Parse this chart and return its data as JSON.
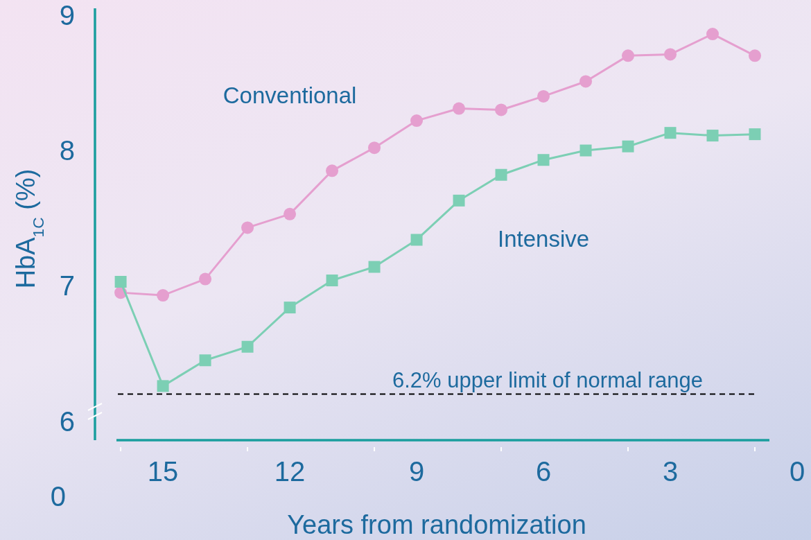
{
  "chart_data": {
    "type": "line",
    "xlabel": "Years from randomization",
    "ylabel": "HbA$_{1C}$ (%)",
    "x": [
      16,
      15,
      14,
      13,
      12,
      11,
      10,
      9,
      8,
      7,
      6,
      5,
      4,
      3,
      2,
      1
    ],
    "xlim": [
      16.1,
      0
    ],
    "xticks": [
      {
        "value": 16,
        "label": null
      },
      15,
      {
        "value": 13,
        "label": null
      },
      12,
      {
        "value": 10,
        "label": null
      },
      9,
      {
        "value": 7,
        "label": null
      },
      6,
      {
        "value": 4,
        "label": null
      },
      3,
      {
        "value": 1,
        "label": null
      },
      0
    ],
    "ylim": [
      5.86,
      9.05
    ],
    "yticks": [
      6,
      7,
      8,
      9
    ],
    "series": [
      {
        "name": "Conventional",
        "color": "#e59fcf",
        "marker": "circle",
        "values": [
          6.95,
          6.93,
          7.05,
          7.43,
          7.53,
          7.85,
          8.02,
          8.22,
          8.31,
          8.3,
          8.4,
          8.51,
          8.7,
          8.71,
          8.86,
          8.7
        ]
      },
      {
        "name": "Intensive",
        "color": "#7ccfb4",
        "marker": "square",
        "values": [
          7.03,
          6.26,
          6.45,
          6.55,
          6.84,
          7.04,
          7.14,
          7.34,
          7.63,
          7.82,
          7.93,
          8.0,
          8.03,
          8.13,
          8.11,
          8.12
        ]
      }
    ],
    "ref_lines": [
      {
        "axis": "y",
        "value": 6.2,
        "label": "6.2% upper limit of normal range",
        "color": "#000000",
        "line_style": "dashed"
      }
    ],
    "annotations": [
      "0"
    ],
    "grid": false,
    "line_style": "solid"
  }
}
